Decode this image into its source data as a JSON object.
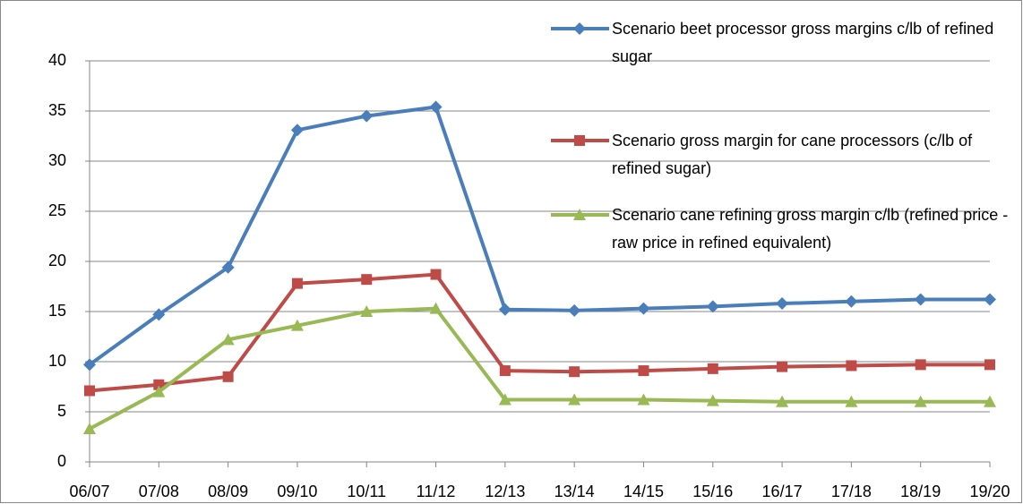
{
  "chart_data": {
    "type": "line",
    "categories": [
      "06/07",
      "07/08",
      "08/09",
      "09/10",
      "10/11",
      "11/12",
      "12/13",
      "13/14",
      "14/15",
      "15/16",
      "16/17",
      "17/18",
      "18/19",
      "19/20"
    ],
    "series": [
      {
        "name": "Scenario beet processor gross margins c/lb of refined sugar",
        "color": "#4a7ebb",
        "marker": "diamond",
        "values": [
          9.7,
          14.7,
          19.4,
          33.1,
          34.5,
          35.4,
          15.2,
          15.1,
          15.3,
          15.5,
          15.8,
          16.0,
          16.2,
          16.2
        ]
      },
      {
        "name": "Scenario gross margin for cane processors (c/lb of refined sugar)",
        "color": "#be4b48",
        "marker": "square",
        "values": [
          7.1,
          7.7,
          8.5,
          17.8,
          18.2,
          18.7,
          9.1,
          9.0,
          9.1,
          9.3,
          9.5,
          9.6,
          9.7,
          9.7
        ]
      },
      {
        "name": "Scenario cane refining gross margin c/lb (refined price - raw price in refined equivalent)",
        "color": "#98b954",
        "marker": "triangle",
        "values": [
          3.3,
          7.0,
          12.2,
          13.6,
          15.0,
          15.3,
          6.2,
          6.2,
          6.2,
          6.1,
          6.0,
          6.0,
          6.0,
          6.0
        ]
      }
    ],
    "ylim": [
      0,
      40
    ],
    "yticks": [
      0,
      5,
      10,
      15,
      20,
      25,
      30,
      35,
      40
    ],
    "grid": true,
    "legend": "right"
  }
}
